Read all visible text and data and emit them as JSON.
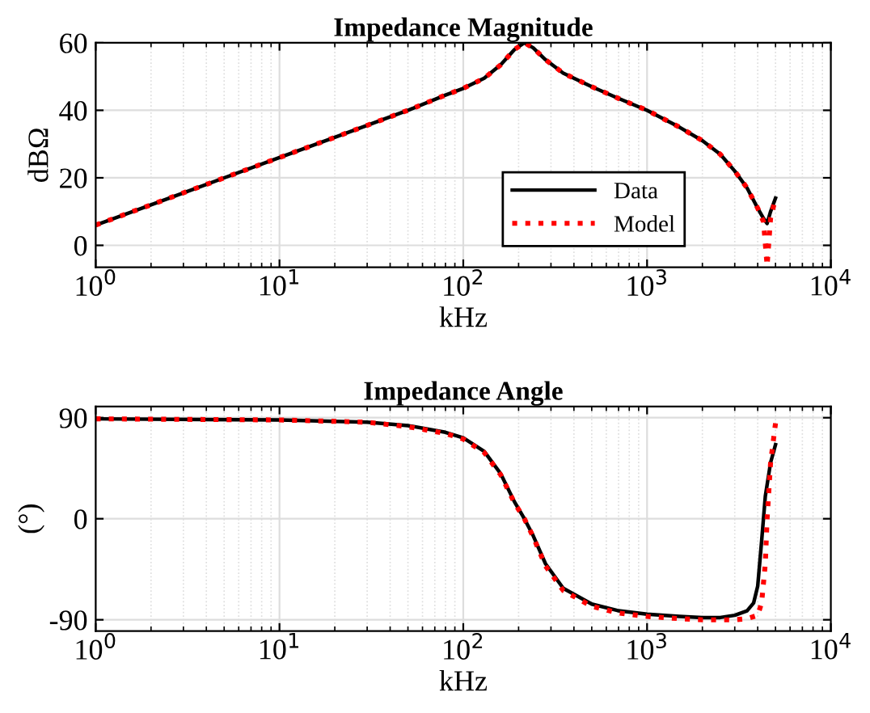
{
  "chart_data": [
    {
      "type": "line",
      "title": "Impedance Magnitude",
      "xlabel": "kHz",
      "ylabel": "dBΩ",
      "log": "x",
      "grid": true,
      "legend": "bottom right",
      "xlim": [
        1,
        10000
      ],
      "xticks": [
        {
          "value": 1,
          "label": "10$^{0}$"
        },
        {
          "value": 10,
          "label": "10$^{1}$"
        },
        {
          "value": 100,
          "label": "10$^{2}$"
        },
        {
          "value": 1000,
          "label": "10$^{3}$"
        },
        {
          "value": 10000,
          "label": "10$^{4}$"
        }
      ],
      "ylim": [
        -6.5,
        60
      ],
      "yticks": [
        0,
        20,
        40,
        60
      ],
      "series": [
        {
          "name": "Data",
          "color": "#000000",
          "line_style": "solid",
          "x": [
            1,
            2,
            5,
            10,
            20,
            50,
            80,
            100,
            130,
            160,
            190,
            215,
            240,
            280,
            350,
            500,
            700,
            1000,
            1500,
            2000,
            2500,
            3000,
            3500,
            4000,
            4300,
            4500,
            4700,
            5000
          ],
          "values": [
            6,
            12,
            20,
            26,
            32,
            40,
            44.5,
            46.5,
            49.5,
            53.5,
            58,
            60,
            58.5,
            55,
            51,
            47,
            43.5,
            40,
            35,
            31,
            27,
            22,
            17,
            11,
            8,
            6.5,
            10,
            14
          ]
        },
        {
          "name": "Model",
          "color": "#ff0000",
          "line_style": "dotted",
          "x": [
            1,
            2,
            5,
            10,
            20,
            50,
            80,
            100,
            130,
            160,
            190,
            215,
            240,
            280,
            350,
            500,
            700,
            1000,
            1500,
            2000,
            2500,
            3000,
            3500,
            4000,
            4300,
            4500,
            4700,
            5000
          ],
          "values": [
            6,
            12,
            20,
            26,
            32,
            40,
            44.5,
            46.5,
            49.5,
            53.5,
            58,
            60,
            58.5,
            55,
            51,
            47,
            43.5,
            40,
            35,
            31,
            27,
            22,
            17,
            11,
            7,
            -6,
            8,
            14
          ]
        }
      ]
    },
    {
      "type": "line",
      "title": "Impedance Angle",
      "xlabel": "kHz",
      "ylabel": "(°)",
      "log": "x",
      "grid": true,
      "xlim": [
        1,
        10000
      ],
      "xticks": [
        {
          "value": 1,
          "label": "10$^{0}$"
        },
        {
          "value": 10,
          "label": "10$^{1}$"
        },
        {
          "value": 100,
          "label": "10$^{2}$"
        },
        {
          "value": 1000,
          "label": "10$^{3}$"
        },
        {
          "value": 10000,
          "label": "10$^{4}$"
        }
      ],
      "ylim": [
        -100,
        100
      ],
      "yticks": [
        -90,
        0,
        90
      ],
      "series": [
        {
          "color": "#000000",
          "line_style": "solid",
          "x": [
            1,
            10,
            30,
            50,
            80,
            100,
            130,
            160,
            190,
            215,
            240,
            280,
            350,
            500,
            700,
            1000,
            1500,
            2000,
            2500,
            3000,
            3500,
            3800,
            4000,
            4200,
            4400,
            4700,
            5000
          ],
          "values": [
            89,
            88,
            86,
            83,
            77,
            72,
            60,
            40,
            15,
            0,
            -15,
            -40,
            -62,
            -76,
            -82,
            -85,
            -87,
            -88,
            -88,
            -86,
            -82,
            -75,
            -60,
            -20,
            20,
            50,
            66
          ]
        },
        {
          "color": "#ff0000",
          "line_style": "dotted",
          "x": [
            1,
            10,
            30,
            50,
            80,
            100,
            130,
            160,
            190,
            215,
            240,
            280,
            350,
            500,
            700,
            1000,
            1500,
            2000,
            3000,
            3500,
            4000,
            4200,
            4400,
            4500,
            4700,
            5000
          ],
          "values": [
            89,
            88,
            86,
            82,
            76,
            71,
            59,
            39,
            14,
            0,
            -16,
            -42,
            -64,
            -78,
            -84,
            -87,
            -89,
            -90,
            -90,
            -89,
            -86,
            -75,
            -40,
            0,
            50,
            85
          ]
        }
      ]
    }
  ]
}
